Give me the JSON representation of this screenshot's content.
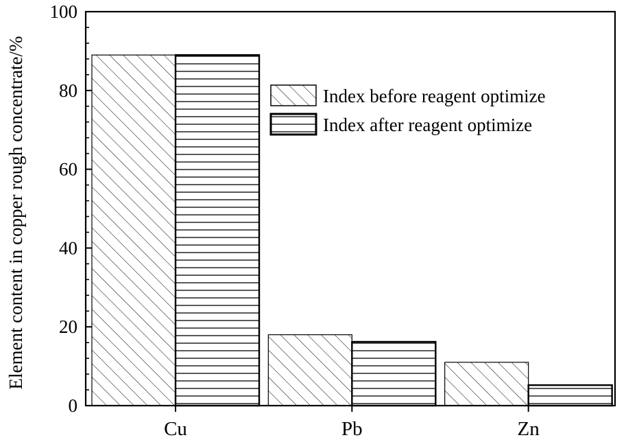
{
  "chart_data": {
    "type": "bar",
    "categories": [
      "Cu",
      "Pb",
      "Zn"
    ],
    "series": [
      {
        "name": "Index before reagent optimize",
        "values": [
          89.0,
          18.0,
          11.0
        ],
        "pattern": "diagonal-hatch"
      },
      {
        "name": "Index after reagent optimize",
        "values": [
          89.0,
          16.2,
          5.2
        ],
        "pattern": "horizontal-hatch"
      }
    ],
    "title": "",
    "xlabel": "",
    "ylabel": "Element content in copper rough concentrate/%",
    "ylim": [
      0,
      100
    ],
    "yticks": [
      0,
      20,
      40,
      60,
      80,
      100
    ],
    "grid": false,
    "legend_position": "top-right"
  }
}
